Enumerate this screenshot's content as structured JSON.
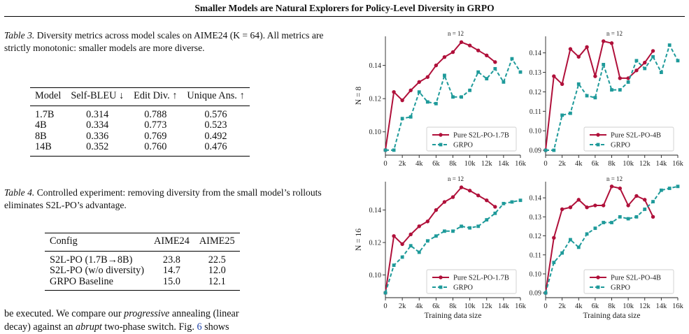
{
  "header": {
    "title": "Smaller Models are Natural Explorers for Policy-Level Diversity in GRPO"
  },
  "table3": {
    "caption_label": "Table 3.",
    "caption_text": "Diversity metrics across model scales on AIME24 (K = 64). All metrics are strictly monotonic: smaller models are more diverse.",
    "columns": [
      "Model",
      "Self-BLEU ↓",
      "Edit Div. ↑",
      "Unique Ans. ↑"
    ],
    "rows": [
      [
        "1.7B",
        "0.314",
        "0.788",
        "0.576"
      ],
      [
        "4B",
        "0.334",
        "0.773",
        "0.523"
      ],
      [
        "8B",
        "0.336",
        "0.769",
        "0.492"
      ],
      [
        "14B",
        "0.352",
        "0.760",
        "0.476"
      ]
    ]
  },
  "table4": {
    "caption_label": "Table 4.",
    "caption_text": "Controlled experiment: removing diversity from the small model’s rollouts eliminates S2L-PO’s advantage.",
    "columns": [
      "Config",
      "AIME24",
      "AIME25"
    ],
    "rows": [
      [
        "S2L-PO (1.7B→8B)",
        "23.8",
        "22.5"
      ],
      [
        "S2L-PO (w/o diversity)",
        "14.7",
        "12.0"
      ],
      [
        "GRPO Baseline",
        "15.0",
        "12.1"
      ]
    ]
  },
  "body_text": {
    "line1_a": "be executed. We compare our ",
    "line1_em": "progressive",
    "line1_b": " annealing (linear",
    "line2_a": "decay) against an ",
    "line2_em": "abrupt",
    "line2_b": " two-phase switch. Fig. ",
    "line2_ref": "6",
    "line2_c": " shows"
  },
  "colors": {
    "pure": "#b0103a",
    "grpo": "#1e9a9a"
  },
  "chart_data": [
    {
      "type": "line",
      "panel_annotation": "n = 12",
      "ylabel": "N = 8",
      "xlabel": "",
      "xlim": [
        0,
        16000
      ],
      "ylim": [
        0.086,
        0.1575
      ],
      "yticks": [
        "0.10",
        "0.12",
        "0.14"
      ],
      "ytick_values": [
        0.1,
        0.12,
        0.14
      ],
      "xtick_labels": [
        "0",
        "2k",
        "4k",
        "6k",
        "8k",
        "10k",
        "12k",
        "14k",
        "16k"
      ],
      "xtick_values": [
        0,
        2000,
        4000,
        6000,
        8000,
        10000,
        12000,
        14000,
        16000
      ],
      "legend_position": "lower-right",
      "series": [
        {
          "name": "Pure S2L-PO-1.7B",
          "style": "pure",
          "x": [
            0,
            1000,
            2000,
            3000,
            4000,
            5000,
            6000,
            7000,
            8000,
            9000,
            10000,
            11000,
            12000,
            13000
          ],
          "y": [
            0.089,
            0.124,
            0.119,
            0.125,
            0.13,
            0.133,
            0.14,
            0.145,
            0.148,
            0.154,
            0.152,
            0.149,
            0.146,
            0.142
          ]
        },
        {
          "name": "GRPO",
          "style": "grpo",
          "x": [
            0,
            1000,
            2000,
            3000,
            4000,
            5000,
            6000,
            7000,
            8000,
            9000,
            10000,
            11000,
            12000,
            13000,
            14000,
            15000,
            16000
          ],
          "y": [
            0.089,
            0.089,
            0.108,
            0.109,
            0.124,
            0.118,
            0.117,
            0.134,
            0.121,
            0.121,
            0.125,
            0.136,
            0.132,
            0.138,
            0.13,
            0.144,
            0.136
          ]
        }
      ]
    },
    {
      "type": "line",
      "panel_annotation": "n = 12",
      "ylabel": "",
      "xlabel": "",
      "xlim": [
        0,
        16000
      ],
      "ylim": [
        0.0875,
        0.1485
      ],
      "yticks": [
        "0.09",
        "0.10",
        "0.11",
        "0.12",
        "0.13",
        "0.14"
      ],
      "ytick_values": [
        0.09,
        0.1,
        0.11,
        0.12,
        0.13,
        0.14
      ],
      "xtick_labels": [
        "0",
        "2k",
        "4k",
        "6k",
        "8k",
        "10k",
        "12k",
        "14k",
        "16k"
      ],
      "xtick_values": [
        0,
        2000,
        4000,
        6000,
        8000,
        10000,
        12000,
        14000,
        16000
      ],
      "legend_position": "lower-right",
      "series": [
        {
          "name": "Pure S2L-PO-4B",
          "style": "pure",
          "x": [
            0,
            1000,
            2000,
            3000,
            4000,
            5000,
            6000,
            7000,
            8000,
            9000,
            10000,
            11000,
            12000,
            13000
          ],
          "y": [
            0.09,
            0.128,
            0.124,
            0.142,
            0.138,
            0.143,
            0.128,
            0.146,
            0.145,
            0.127,
            0.127,
            0.131,
            0.135,
            0.141
          ]
        },
        {
          "name": "GRPO",
          "style": "grpo",
          "x": [
            0,
            1000,
            2000,
            3000,
            4000,
            5000,
            6000,
            7000,
            8000,
            9000,
            10000,
            11000,
            12000,
            13000,
            14000,
            15000,
            16000
          ],
          "y": [
            0.09,
            0.09,
            0.108,
            0.109,
            0.124,
            0.118,
            0.117,
            0.134,
            0.121,
            0.121,
            0.125,
            0.136,
            0.132,
            0.138,
            0.13,
            0.144,
            0.136
          ]
        }
      ]
    },
    {
      "type": "line",
      "panel_annotation": "n = 12",
      "ylabel": "N = 16",
      "xlabel": "Training data size",
      "xlim": [
        0,
        16000
      ],
      "ylim": [
        0.086,
        0.1575
      ],
      "yticks": [
        "0.10",
        "0.12",
        "0.14"
      ],
      "ytick_values": [
        0.1,
        0.12,
        0.14
      ],
      "xtick_labels": [
        "0",
        "2k",
        "4k",
        "6k",
        "8k",
        "10k",
        "12k",
        "14k",
        "16k"
      ],
      "xtick_values": [
        0,
        2000,
        4000,
        6000,
        8000,
        10000,
        12000,
        14000,
        16000
      ],
      "legend_position": "lower-right",
      "series": [
        {
          "name": "Pure S2L-PO-1.7B",
          "style": "pure",
          "x": [
            0,
            1000,
            2000,
            3000,
            4000,
            5000,
            6000,
            7000,
            8000,
            9000,
            10000,
            11000,
            12000,
            13000
          ],
          "y": [
            0.089,
            0.124,
            0.119,
            0.125,
            0.13,
            0.133,
            0.14,
            0.145,
            0.148,
            0.154,
            0.152,
            0.149,
            0.146,
            0.142
          ]
        },
        {
          "name": "GRPO",
          "style": "grpo",
          "x": [
            0,
            1000,
            2000,
            3000,
            4000,
            5000,
            6000,
            7000,
            8000,
            9000,
            10000,
            11000,
            12000,
            13000,
            14000,
            15000,
            16000
          ],
          "y": [
            0.089,
            0.106,
            0.111,
            0.118,
            0.114,
            0.121,
            0.124,
            0.127,
            0.127,
            0.13,
            0.129,
            0.13,
            0.134,
            0.138,
            0.144,
            0.145,
            0.146
          ]
        }
      ]
    },
    {
      "type": "line",
      "panel_annotation": "n = 12",
      "ylabel": "",
      "xlabel": "Training data size",
      "xlim": [
        0,
        16000
      ],
      "ylim": [
        0.0875,
        0.1485
      ],
      "yticks": [
        "0.09",
        "0.10",
        "0.11",
        "0.12",
        "0.13",
        "0.14"
      ],
      "ytick_values": [
        0.09,
        0.1,
        0.11,
        0.12,
        0.13,
        0.14
      ],
      "xtick_labels": [
        "0",
        "2k",
        "4k",
        "6k",
        "8k",
        "10k",
        "12k",
        "14k",
        "16k"
      ],
      "xtick_values": [
        0,
        2000,
        4000,
        6000,
        8000,
        10000,
        12000,
        14000,
        16000
      ],
      "legend_position": "lower-right",
      "series": [
        {
          "name": "Pure S2L-PO-4B",
          "style": "pure",
          "x": [
            0,
            1000,
            2000,
            3000,
            4000,
            5000,
            6000,
            7000,
            8000,
            9000,
            10000,
            11000,
            12000,
            13000
          ],
          "y": [
            0.09,
            0.119,
            0.134,
            0.135,
            0.139,
            0.135,
            0.136,
            0.136,
            0.146,
            0.145,
            0.136,
            0.141,
            0.139,
            0.13
          ]
        },
        {
          "name": "GRPO",
          "style": "grpo",
          "x": [
            0,
            1000,
            2000,
            3000,
            4000,
            5000,
            6000,
            7000,
            8000,
            9000,
            10000,
            11000,
            12000,
            13000,
            14000,
            15000,
            16000
          ],
          "y": [
            0.09,
            0.106,
            0.111,
            0.118,
            0.114,
            0.121,
            0.124,
            0.127,
            0.127,
            0.13,
            0.129,
            0.13,
            0.134,
            0.138,
            0.144,
            0.145,
            0.146
          ]
        }
      ]
    }
  ]
}
